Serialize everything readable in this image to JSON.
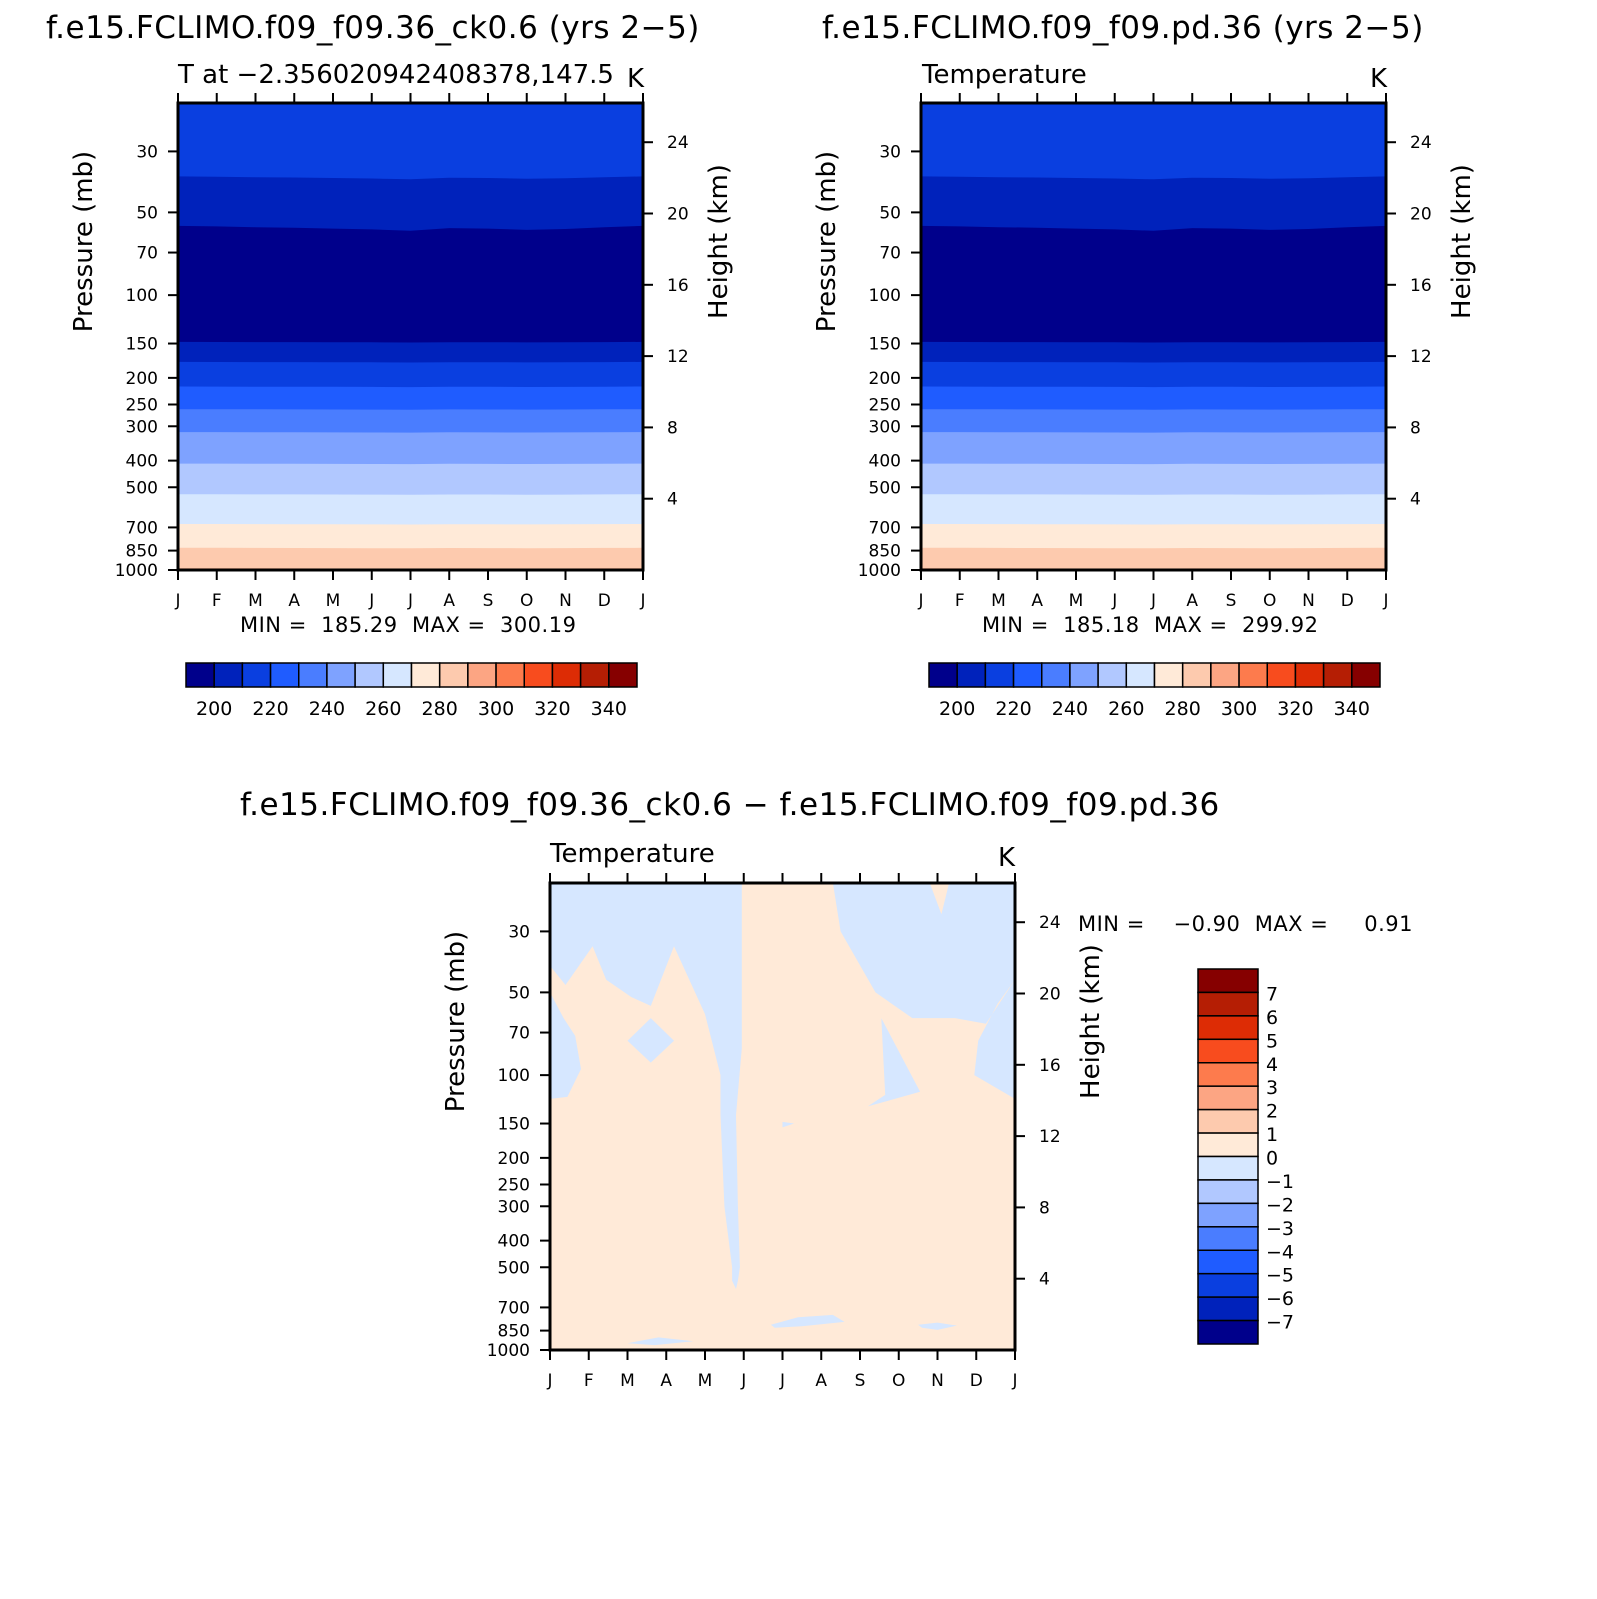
{
  "panels": [
    {
      "title": "f.e15.FCLIMO.f09_f09.36_ck0.6 (yrs 2−5)",
      "subtitle": "T at −2.356020942408378,147.5",
      "units": "K",
      "minmax": "MIN =  185.29  MAX =  300.19"
    },
    {
      "title": "f.e15.FCLIMO.f09_f09.pd.36 (yrs 2−5)",
      "subtitle": "Temperature",
      "units": "K",
      "minmax": "MIN =  185.18  MAX =  299.92"
    },
    {
      "title": "f.e15.FCLIMO.f09_f09.36_ck0.6 − f.e15.FCLIMO.f09_f09.pd.36",
      "subtitle": "Temperature",
      "units": "K",
      "minmax": "MIN =    −0.90  MAX =     0.91"
    }
  ],
  "chart_data": [
    {
      "type": "heatmap",
      "title": "f.e15.FCLIMO.f09_f09.36_ck0.6 (yrs 2−5)",
      "subtitle": "T at −2.356020942408378,147.5",
      "units": "K",
      "xlabel": "",
      "ylabel": "Pressure (mb)",
      "ylabel_right": "Height (km)",
      "x_ticks": [
        "J",
        "F",
        "M",
        "A",
        "M",
        "J",
        "J",
        "A",
        "S",
        "O",
        "N",
        "D",
        "J"
      ],
      "y_ticks": [
        "30",
        "50",
        "70",
        "100",
        "150",
        "200",
        "250",
        "300",
        "400",
        "500",
        "700",
        "850",
        "1000"
      ],
      "y_ticks_right": [
        "24",
        "20",
        "16",
        "12",
        "8",
        "4"
      ],
      "colorbar": {
        "labels": [
          "200",
          "220",
          "240",
          "260",
          "280",
          "300",
          "320",
          "340"
        ],
        "colors": [
          "#00008b",
          "#0022bb",
          "#0a3fe0",
          "#1f5cff",
          "#4a7dff",
          "#7ea2ff",
          "#b1c8ff",
          "#d6e7ff",
          "#ffead8",
          "#fdcaae",
          "#fca583",
          "#fd7b4d",
          "#f84c1e",
          "#dd2c05",
          "#b51e04",
          "#860000"
        ]
      },
      "min": 185.29,
      "max": 300.19
    },
    {
      "type": "heatmap",
      "title": "f.e15.FCLIMO.f09_f09.pd.36 (yrs 2−5)",
      "subtitle": "Temperature",
      "units": "K",
      "xlabel": "",
      "ylabel": "Pressure (mb)",
      "ylabel_right": "Height (km)",
      "x_ticks": [
        "J",
        "F",
        "M",
        "A",
        "M",
        "J",
        "J",
        "A",
        "S",
        "O",
        "N",
        "D",
        "J"
      ],
      "y_ticks": [
        "30",
        "50",
        "70",
        "100",
        "150",
        "200",
        "250",
        "300",
        "400",
        "500",
        "700",
        "850",
        "1000"
      ],
      "y_ticks_right": [
        "24",
        "20",
        "16",
        "12",
        "8",
        "4"
      ],
      "colorbar": {
        "labels": [
          "200",
          "220",
          "240",
          "260",
          "280",
          "300",
          "320",
          "340"
        ],
        "colors": [
          "#00008b",
          "#0022bb",
          "#0a3fe0",
          "#1f5cff",
          "#4a7dff",
          "#7ea2ff",
          "#b1c8ff",
          "#d6e7ff",
          "#ffead8",
          "#fdcaae",
          "#fca583",
          "#fd7b4d",
          "#f84c1e",
          "#dd2c05",
          "#b51e04",
          "#860000"
        ]
      },
      "min": 185.18,
      "max": 299.92
    },
    {
      "type": "heatmap",
      "title": "f.e15.FCLIMO.f09_f09.36_ck0.6 − f.e15.FCLIMO.f09_f09.pd.36",
      "subtitle": "Temperature",
      "units": "K",
      "xlabel": "",
      "ylabel": "Pressure (mb)",
      "ylabel_right": "Height (km)",
      "x_ticks": [
        "J",
        "F",
        "M",
        "A",
        "M",
        "J",
        "J",
        "A",
        "S",
        "O",
        "N",
        "D",
        "J"
      ],
      "y_ticks": [
        "30",
        "50",
        "70",
        "100",
        "150",
        "200",
        "250",
        "300",
        "400",
        "500",
        "700",
        "850",
        "1000"
      ],
      "y_ticks_right": [
        "24",
        "20",
        "16",
        "12",
        "8",
        "4"
      ],
      "colorbar": {
        "labels": [
          "7",
          "6",
          "5",
          "4",
          "3",
          "2",
          "1",
          "0",
          "−1",
          "−2",
          "−3",
          "−4",
          "−5",
          "−6",
          "−7"
        ],
        "colors": [
          "#860000",
          "#b51e04",
          "#dd2c05",
          "#f84c1e",
          "#fd7b4d",
          "#fca583",
          "#fdcaae",
          "#ffead8",
          "#d6e7ff",
          "#b1c8ff",
          "#7ea2ff",
          "#4a7dff",
          "#1f5cff",
          "#0a3fe0",
          "#0022bb",
          "#00008b"
        ]
      },
      "min": -0.9,
      "max": 0.91
    }
  ]
}
